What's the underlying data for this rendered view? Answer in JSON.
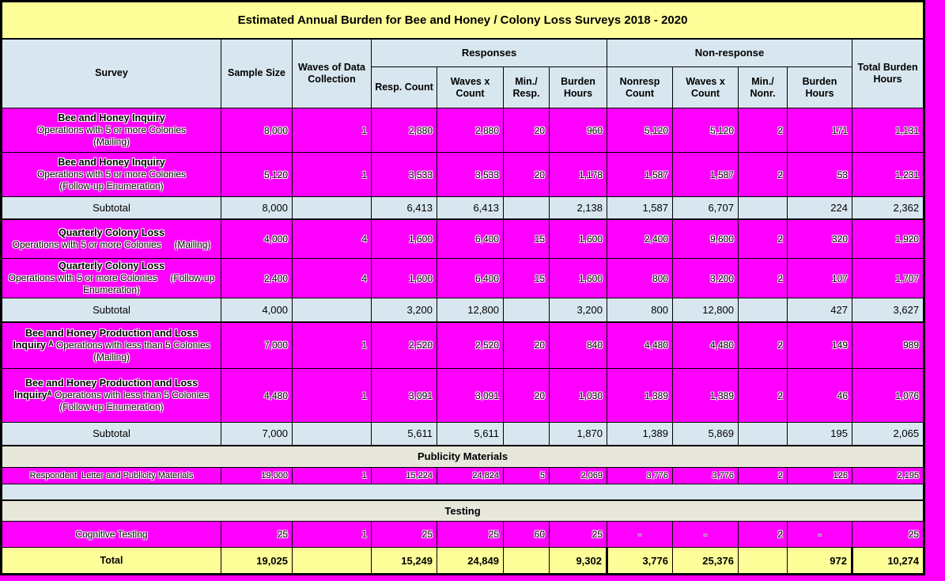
{
  "title": "Estimated Annual Burden for Bee and Honey / Colony Loss Surveys 2018 - 2020",
  "colors": {
    "page_background": "#FF00FF",
    "title_yellow": "#FFFF99",
    "header_blue": "#D8E7EF",
    "data_magenta": "#FF00FF",
    "section_gray_green": "#E7E7DB",
    "total_yellow": "#FFFF99",
    "border_black": "#000000"
  },
  "table": {
    "headers": {
      "survey": "Survey",
      "sample_size": "Sample Size",
      "waves": "Waves of Data Collection",
      "responses_group": "Responses",
      "nonresponse_group": "Non-response",
      "total_burden": "Total Burden Hours",
      "resp_count": "Resp. Count",
      "resp_waves_x_count": "Waves x Count",
      "min_resp": "Min./ Resp.",
      "resp_burden": "Burden Hours",
      "nonresp_count": "Nonresp Count",
      "nonresp_waves_x_count": "Waves x Count",
      "min_nonr": "Min./ Nonr.",
      "nonresp_burden": "Burden Hours"
    },
    "rows": [
      {
        "type": "data",
        "label_lines": [
          [
            {
              "t": "Bee and Honey Inquiry",
              "b": true
            }
          ],
          [
            {
              "t": "Operations with 5 or more Colonies"
            }
          ],
          [
            {
              "t": "(Mailing)"
            }
          ]
        ],
        "cells": [
          "8,000",
          "1",
          "2,880",
          "2,880",
          "20",
          "960",
          "5,120",
          "5,120",
          "2",
          "171",
          "1,131"
        ]
      },
      {
        "type": "data",
        "label_lines": [
          [
            {
              "t": "Bee and Honey Inquiry",
              "b": true
            }
          ],
          [
            {
              "t": "Operations with 5 or more Colonies"
            }
          ],
          [
            {
              "t": "(Follow-up Enumeration)"
            }
          ]
        ],
        "cells": [
          "5,120",
          "1",
          "3,533",
          "3,533",
          "20",
          "1,178",
          "1,587",
          "1,587",
          "2",
          "53",
          "1,231"
        ]
      },
      {
        "type": "subtotal",
        "label_lines": [
          [
            {
              "t": "Subtotal"
            }
          ]
        ],
        "cells": [
          "8,000",
          "",
          "6,413",
          "6,413",
          "",
          "2,138",
          "1,587",
          "6,707",
          "",
          "224",
          "2,362"
        ]
      },
      {
        "type": "data",
        "label_lines": [
          [
            {
              "t": "Quarterly Colony Loss",
              "b": true
            }
          ],
          [
            {
              "t": "Operations with 5 or more Colonies     (Mailing)"
            }
          ]
        ],
        "cells": [
          "4,000",
          "4",
          "1,600",
          "6,400",
          "15",
          "1,600",
          "2,400",
          "9,600",
          "2",
          "320",
          "1,920"
        ]
      },
      {
        "type": "data",
        "label_lines": [
          [
            {
              "t": "Quarterly Colony Loss",
              "b": true
            }
          ],
          [
            {
              "t": "Operations with 5 or more Colonies     (Follow-up Enumeration)"
            }
          ]
        ],
        "cells": [
          "2,400",
          "4",
          "1,600",
          "6,400",
          "15",
          "1,600",
          "800",
          "3,200",
          "2",
          "107",
          "1,707"
        ]
      },
      {
        "type": "subtotal",
        "label_lines": [
          [
            {
              "t": "Subtotal"
            }
          ]
        ],
        "cells": [
          "4,000",
          "",
          "3,200",
          "12,800",
          "",
          "3,200",
          "800",
          "12,800",
          "",
          "427",
          "3,627"
        ]
      },
      {
        "type": "data",
        "label_lines": [
          [
            {
              "t": "Bee and Honey Production and Loss",
              "b": true
            }
          ],
          [
            {
              "t": "Inquiry ᴬ",
              "b": true
            },
            {
              "t": "Operations with less than 5 Colonies"
            }
          ],
          [
            {
              "t": "(Mailing)"
            }
          ]
        ],
        "cells": [
          "7,000",
          "1",
          "2,520",
          "2,520",
          "20",
          "840",
          "4,480",
          "4,480",
          "2",
          "149",
          "989"
        ]
      },
      {
        "type": "data",
        "label_lines": [
          [
            {
              "t": "Bee and Honey Production and Loss",
              "b": true
            }
          ],
          [
            {
              "t": "Inquiryᴬ",
              "b": true
            },
            {
              "t": "Operations with less than 5 Colonies"
            }
          ],
          [
            {
              "t": "(Follow-up Enumeration)"
            }
          ]
        ],
        "cells": [
          "4,480",
          "1",
          "3,091",
          "3,091",
          "20",
          "1,030",
          "1,389",
          "1,389",
          "2",
          "46",
          "1,076"
        ]
      },
      {
        "type": "subtotal",
        "label_lines": [
          [
            {
              "t": "Subtotal"
            }
          ]
        ],
        "cells": [
          "7,000",
          "",
          "5,611",
          "5,611",
          "",
          "1,870",
          "1,389",
          "5,869",
          "",
          "195",
          "2,065"
        ]
      },
      {
        "type": "section",
        "label": "Publicity Materials"
      },
      {
        "type": "data",
        "label_lines": [
          [
            {
              "t": "Respondent  Letter and Publicity Materials"
            }
          ]
        ],
        "cells": [
          "19,000",
          "1",
          "15,224",
          "24,824",
          "5",
          "2,069",
          "3,776",
          "3,776",
          "2",
          "126",
          "2,195"
        ]
      },
      {
        "type": "blank"
      },
      {
        "type": "section",
        "label": "Testing"
      },
      {
        "type": "data",
        "label_lines": [
          [
            {
              "t": "Cognitive Testing"
            }
          ]
        ],
        "cells": [
          "25",
          "1",
          "25",
          "25",
          "60",
          "25",
          "-",
          "-",
          "2",
          "-",
          "25"
        ]
      },
      {
        "type": "total",
        "label_lines": [
          [
            {
              "t": "Total",
              "b": true
            }
          ]
        ],
        "cells": [
          "19,025",
          "",
          "15,249",
          "24,849",
          "",
          "9,302",
          "3,776",
          "25,376",
          "",
          "972",
          "10,274"
        ]
      }
    ]
  }
}
